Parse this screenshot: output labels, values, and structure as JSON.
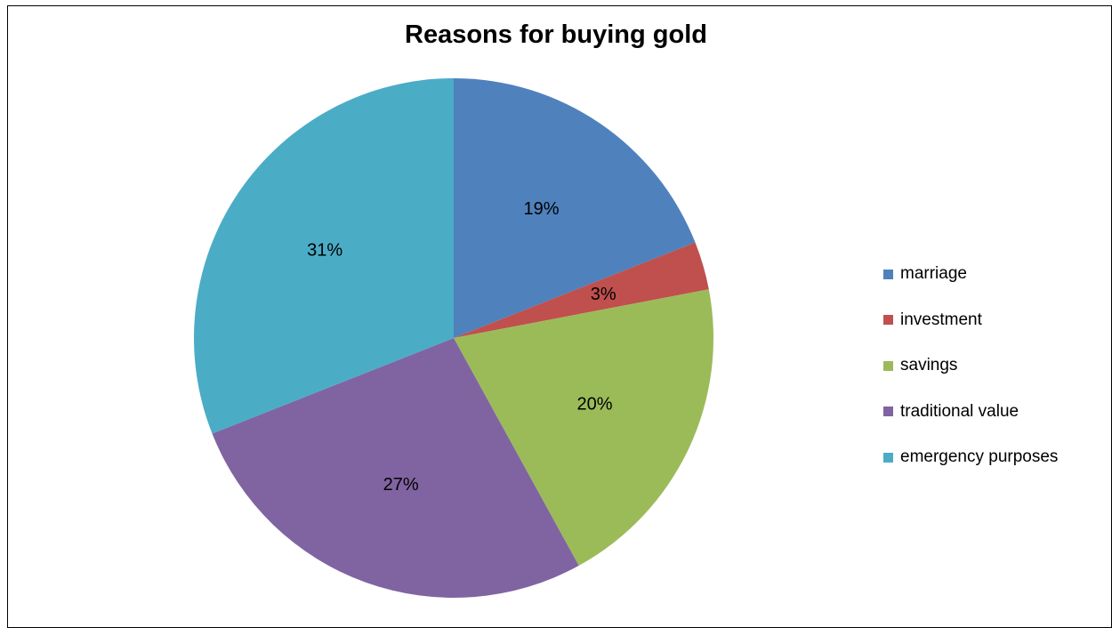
{
  "chart_data": {
    "type": "pie",
    "title": "Reasons for buying gold",
    "categories": [
      "marriage",
      "investment",
      "savings",
      "traditional value",
      "emergency purposes"
    ],
    "values": [
      19,
      3,
      20,
      27,
      31
    ],
    "labels": [
      "19%",
      "3%",
      "20%",
      "27%",
      "31%"
    ],
    "colors": [
      "#4F81BD",
      "#C0504D",
      "#9BBB59",
      "#8064A2",
      "#4BACC6"
    ],
    "start_angle_deg": 0,
    "direction": "clockwise",
    "legend_position": "right"
  }
}
